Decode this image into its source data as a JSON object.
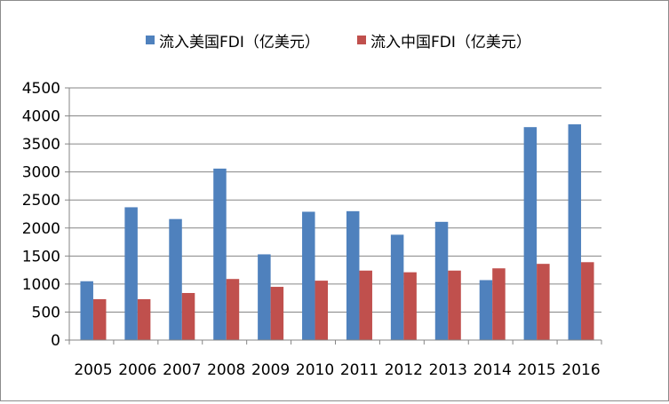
{
  "chart_data": {
    "type": "bar",
    "title": "",
    "xlabel": "",
    "ylabel": "",
    "categories": [
      "2005",
      "2006",
      "2007",
      "2008",
      "2009",
      "2010",
      "2011",
      "2012",
      "2013",
      "2014",
      "2015",
      "2016"
    ],
    "series": [
      {
        "name": "流入美国FDI（亿美元）",
        "color": "#4F81BD",
        "values": [
          1050,
          2370,
          2160,
          3060,
          1530,
          2290,
          2300,
          1880,
          2110,
          1070,
          3800,
          3850
        ]
      },
      {
        "name": "流入中国FDI（亿美元）",
        "color": "#C0504D",
        "values": [
          730,
          730,
          840,
          1090,
          950,
          1060,
          1240,
          1210,
          1240,
          1280,
          1360,
          1390
        ]
      }
    ],
    "ylim": [
      0,
      4500
    ],
    "yticks": [
      0,
      500,
      1000,
      1500,
      2000,
      2500,
      3000,
      3500,
      4000,
      4500
    ],
    "grid": true,
    "legend_position": "top"
  }
}
